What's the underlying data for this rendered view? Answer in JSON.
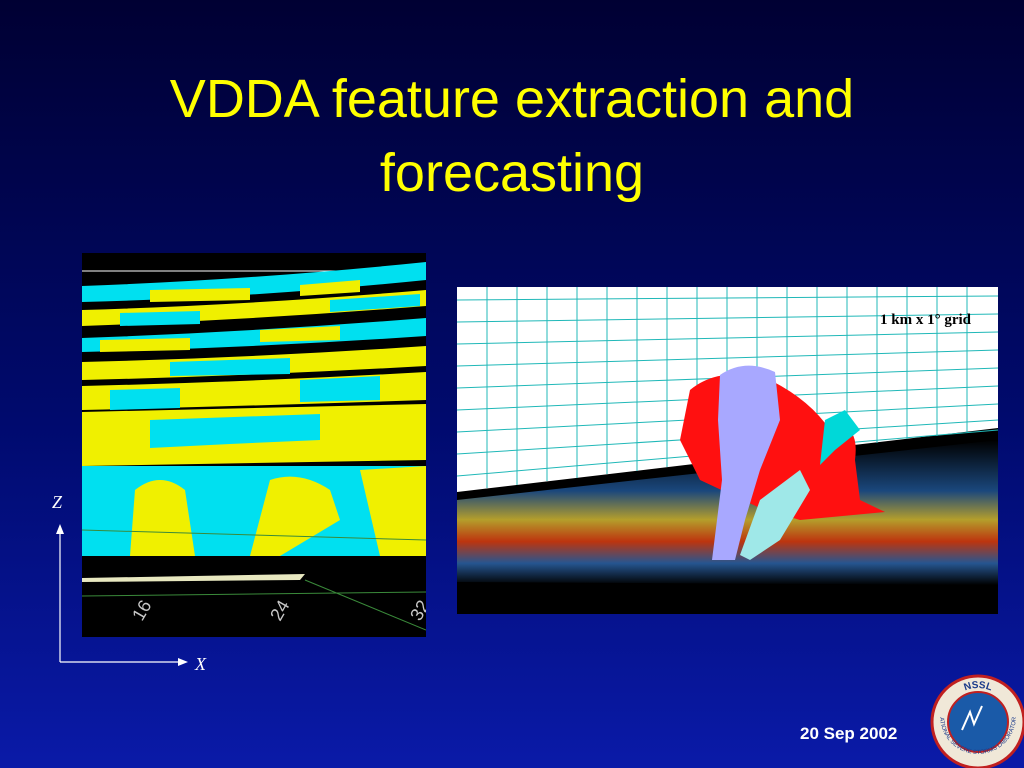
{
  "header": {
    "title": "VDDA feature extraction and forecasting"
  },
  "left_figure": {
    "z_axis_label": "Z",
    "x_axis_label": "X",
    "tick_labels": [
      "16",
      "24",
      "32"
    ]
  },
  "right_figure": {
    "annotation": "1 km x 1° grid"
  },
  "footer": {
    "date": "20 Sep 2002",
    "logo": {
      "acronym": "NSSL",
      "name": "NATIONAL SEVERE STORMS LABORATORY"
    }
  }
}
